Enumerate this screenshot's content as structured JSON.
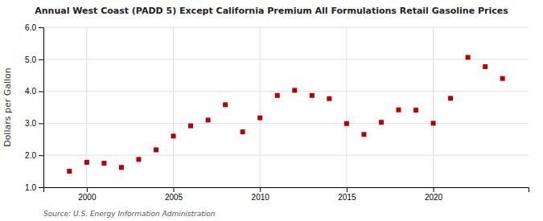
{
  "chart_data": {
    "type": "scatter",
    "title": "Annual West Coast (PADD 5) Except California Premium All Formulations Retail Gasoline Prices",
    "y_label": "Dollars per Gallon",
    "source": "Source: U.S. Energy Information Administration",
    "x": [
      1999,
      2000,
      2001,
      2002,
      2003,
      2004,
      2005,
      2006,
      2007,
      2008,
      2009,
      2010,
      2011,
      2012,
      2013,
      2014,
      2015,
      2016,
      2017,
      2018,
      2019,
      2020,
      2021,
      2022,
      2023,
      2024
    ],
    "values": [
      1.5,
      1.78,
      1.75,
      1.62,
      1.87,
      2.17,
      2.6,
      2.92,
      3.1,
      3.58,
      2.73,
      3.17,
      3.87,
      4.03,
      3.87,
      3.77,
      2.99,
      2.65,
      3.03,
      3.42,
      3.41,
      3.0,
      3.78,
      5.06,
      4.77,
      4.4
    ],
    "color": "#bb0000",
    "marker": "square",
    "xlim": [
      1997.5,
      2025.5
    ],
    "xticks": [
      2000,
      2005,
      2010,
      2015,
      2020
    ],
    "ylim": [
      1.0,
      6.0
    ],
    "yticks": [
      {
        "value": 1.0,
        "label": "1.0"
      },
      {
        "value": 2.0,
        "label": "2.0"
      },
      {
        "value": 3.0,
        "label": "3.0"
      },
      {
        "value": 4.0,
        "label": "4.0"
      },
      {
        "value": 5.0,
        "label": "5.0"
      },
      {
        "value": 6.0,
        "label": "6.0"
      }
    ],
    "grid": true
  }
}
